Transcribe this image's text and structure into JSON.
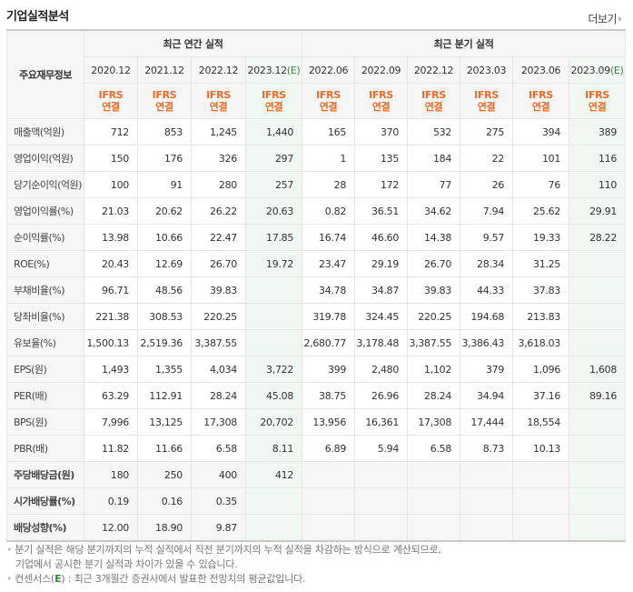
{
  "header": {
    "title": "기업실적분석",
    "more_label": "더보기"
  },
  "table": {
    "corner_label": "주요재무정보",
    "annual_group_label": "최근 연간 실적",
    "quarterly_group_label": "최근 분기 실적",
    "estimate_mark": "(E)",
    "ifrs_line1": "IFRS",
    "ifrs_line2": "연결",
    "annual_periods": [
      "2020.12",
      "2021.12",
      "2022.12",
      "2023.12"
    ],
    "quarterly_periods": [
      "2022.06",
      "2022.09",
      "2022.12",
      "2023.03",
      "2023.06",
      "2023.09"
    ],
    "rows": [
      {
        "label": "매출액(억원)",
        "values": [
          "712",
          "853",
          "1,245",
          "1,440",
          "165",
          "370",
          "532",
          "275",
          "394",
          "389"
        ]
      },
      {
        "label": "영업이익(억원)",
        "values": [
          "150",
          "176",
          "326",
          "297",
          "1",
          "135",
          "184",
          "22",
          "101",
          "116"
        ]
      },
      {
        "label": "당기순이익(억원)",
        "values": [
          "100",
          "91",
          "280",
          "257",
          "28",
          "172",
          "77",
          "26",
          "76",
          "110"
        ]
      },
      {
        "label": "영업이익률(%)",
        "values": [
          "21.03",
          "20.62",
          "26.22",
          "20.63",
          "0.82",
          "36.51",
          "34.62",
          "7.94",
          "25.62",
          "29.91"
        ]
      },
      {
        "label": "순이익률(%)",
        "values": [
          "13.98",
          "10.66",
          "22.47",
          "17.85",
          "16.74",
          "46.60",
          "14.38",
          "9.57",
          "19.33",
          "28.22"
        ]
      },
      {
        "label": "ROE(%)",
        "values": [
          "20.43",
          "12.69",
          "26.70",
          "19.72",
          "23.47",
          "29.19",
          "26.70",
          "28.34",
          "31.25",
          ""
        ]
      },
      {
        "label": "부채비율(%)",
        "values": [
          "96.71",
          "48.56",
          "39.83",
          "",
          "34.78",
          "34.87",
          "39.83",
          "44.33",
          "37.83",
          ""
        ]
      },
      {
        "label": "당좌비율(%)",
        "values": [
          "221.38",
          "308.53",
          "220.25",
          "",
          "319.78",
          "324.45",
          "220.25",
          "194.68",
          "213.83",
          ""
        ]
      },
      {
        "label": "유보율(%)",
        "values": [
          "1,500.13",
          "2,519.36",
          "3,387.55",
          "",
          "2,680.77",
          "3,178.48",
          "3,387.55",
          "3,386.43",
          "3,618.03",
          ""
        ]
      },
      {
        "label": "EPS(원)",
        "values": [
          "1,493",
          "1,355",
          "4,034",
          "3,722",
          "399",
          "2,480",
          "1,102",
          "379",
          "1,096",
          "1,608"
        ]
      },
      {
        "label": "PER(배)",
        "values": [
          "63.29",
          "112.91",
          "28.24",
          "45.08",
          "38.75",
          "26.96",
          "28.24",
          "34.94",
          "37.16",
          "89.16"
        ]
      },
      {
        "label": "BPS(원)",
        "values": [
          "7,996",
          "13,125",
          "17,308",
          "20,702",
          "13,956",
          "16,361",
          "17,308",
          "17,444",
          "18,554",
          ""
        ]
      },
      {
        "label": "PBR(배)",
        "values": [
          "11.82",
          "11.66",
          "6.58",
          "8.11",
          "6.89",
          "5.94",
          "6.58",
          "8.73",
          "10.13",
          ""
        ]
      },
      {
        "label": "주당배당금(원)",
        "values": [
          "180",
          "250",
          "400",
          "412",
          "",
          "",
          "",
          "",
          "",
          ""
        ]
      },
      {
        "label": "시가배당률(%)",
        "values": [
          "0.19",
          "0.16",
          "0.35",
          "",
          "",
          "",
          "",
          "",
          "",
          ""
        ]
      },
      {
        "label": "배당성향(%)",
        "values": [
          "12.00",
          "18.90",
          "9.87",
          "",
          "",
          "",
          "",
          "",
          "",
          ""
        ]
      }
    ]
  },
  "notes": {
    "line1": "분기 실적은 해당 분기까지의 누적 실적에서 직전 분기까지의 누적 실적을 차감하는 방식으로 계산되므로,",
    "line2": "기업에서 공시한 분기 실적과 차이가 있을 수 있습니다.",
    "line3_prefix": "컨센서스(",
    "line3_e": "E",
    "line3_suffix": ") : 최근 3개월간 증권사에서 발표한 전망치의 평균값입니다."
  },
  "colors": {
    "ifrs_orange": "#ee6a24",
    "estimate_green": "#2f8f3a",
    "estimate_bg": "#f1f8f2",
    "header_bg": "#f6f6f6"
  }
}
